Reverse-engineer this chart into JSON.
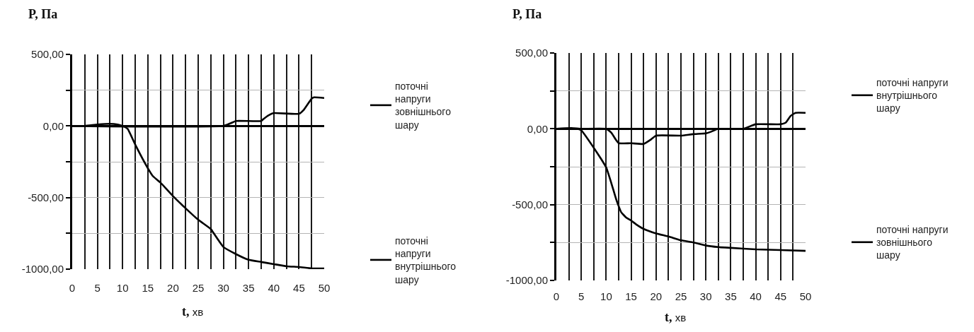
{
  "chart_data": [
    {
      "type": "line",
      "ylabel": "P, Па",
      "xlabel": "t, хв",
      "xlim": [
        0,
        50
      ],
      "ylim": [
        -1000,
        500
      ],
      "xticks": [
        0,
        {
          "value": 2.5,
          "label": null
        },
        5,
        {
          "value": 7.5,
          "label": null
        },
        10,
        {
          "value": 12.5,
          "label": null
        },
        15,
        {
          "value": 17.5,
          "label": null
        },
        20,
        {
          "value": 22.5,
          "label": null
        },
        25,
        {
          "value": 27.5,
          "label": null
        },
        30,
        {
          "value": 32.5,
          "label": null
        },
        35,
        {
          "value": 37.5,
          "label": null
        },
        40,
        {
          "value": 42.5,
          "label": null
        },
        45,
        {
          "value": 47.5,
          "label": null
        },
        50
      ],
      "yticks": [
        {
          "value": -1000,
          "label": "-1000,00"
        },
        {
          "value": -750,
          "label": null
        },
        {
          "value": -500,
          "label": "-500,00"
        },
        {
          "value": -250,
          "label": null
        },
        {
          "value": 0,
          "label": "0,00"
        },
        {
          "value": 250,
          "label": null
        },
        {
          "value": 500,
          "label": "500,00"
        }
      ],
      "grid": true,
      "legend": "right",
      "marker": "none",
      "line_style": "solid",
      "series": [
        {
          "name": "поточні напруги зовнішнього шару",
          "color": "#000000",
          "x": [
            0,
            30,
            31.5,
            32.5,
            37.5,
            38,
            39,
            40,
            45,
            46,
            47.5,
            48,
            50
          ],
          "values": [
            0,
            0,
            20,
            35,
            35,
            50,
            75,
            90,
            85,
            115,
            190,
            200,
            195
          ]
        },
        {
          "name": "поточні напруги внутрішнього шару",
          "color": "#000000",
          "x": [
            0,
            2.5,
            5,
            7.5,
            9,
            10,
            11,
            12.5,
            15,
            16,
            17.5,
            20,
            22.5,
            25,
            27.5,
            28,
            30,
            32.5,
            35,
            37.5,
            40,
            42.5,
            45,
            47.5,
            50
          ],
          "values": [
            0,
            0,
            10,
            15,
            10,
            0,
            -20,
            -130,
            -295,
            -350,
            -395,
            -490,
            -575,
            -655,
            -720,
            -745,
            -845,
            -895,
            -935,
            -950,
            -965,
            -980,
            -985,
            -995,
            -995
          ]
        }
      ]
    },
    {
      "type": "line",
      "ylabel": "P, Па",
      "xlabel": "t, хв",
      "xlim": [
        0,
        50
      ],
      "ylim": [
        -1000,
        500
      ],
      "xticks": [
        0,
        {
          "value": 2.5,
          "label": null
        },
        5,
        {
          "value": 7.5,
          "label": null
        },
        10,
        {
          "value": 12.5,
          "label": null
        },
        15,
        {
          "value": 17.5,
          "label": null
        },
        20,
        {
          "value": 22.5,
          "label": null
        },
        25,
        {
          "value": 27.5,
          "label": null
        },
        30,
        {
          "value": 32.5,
          "label": null
        },
        35,
        {
          "value": 37.5,
          "label": null
        },
        40,
        {
          "value": 42.5,
          "label": null
        },
        45,
        {
          "value": 47.5,
          "label": null
        },
        50
      ],
      "yticks": [
        {
          "value": -1000,
          "label": "-1000,00"
        },
        {
          "value": -750,
          "label": null
        },
        {
          "value": -500,
          "label": "-500,00"
        },
        {
          "value": -250,
          "label": null
        },
        {
          "value": 0,
          "label": "0,00"
        },
        {
          "value": 250,
          "label": null
        },
        {
          "value": 500,
          "label": "500,00"
        }
      ],
      "grid": true,
      "legend": "right",
      "marker": "none",
      "line_style": "solid",
      "series": [
        {
          "name": "поточні напруги внутрішнього шару",
          "color": "#000000",
          "x": [
            0,
            3,
            5,
            10,
            11,
            12,
            12.5,
            15,
            17.5,
            19,
            20,
            25,
            27.5,
            30,
            31,
            32.5,
            37.5,
            40,
            45,
            46,
            47,
            48,
            50
          ],
          "values": [
            0,
            5,
            0,
            0,
            -25,
            -75,
            -95,
            -95,
            -100,
            -70,
            -45,
            -45,
            -35,
            -30,
            -20,
            0,
            0,
            30,
            30,
            40,
            85,
            105,
            105
          ]
        },
        {
          "name": "поточні напруги зовнішнього шару",
          "color": "#000000",
          "x": [
            0,
            4,
            5,
            7.5,
            9,
            10,
            11,
            12,
            12.5,
            13,
            14,
            15,
            16,
            17.5,
            20,
            22.5,
            25,
            27.5,
            30,
            32.5,
            35,
            40,
            45,
            50
          ],
          "values": [
            0,
            0,
            -10,
            -125,
            -200,
            -255,
            -355,
            -465,
            -510,
            -550,
            -585,
            -605,
            -630,
            -660,
            -690,
            -710,
            -735,
            -750,
            -770,
            -780,
            -785,
            -795,
            -800,
            -805
          ]
        }
      ]
    }
  ]
}
